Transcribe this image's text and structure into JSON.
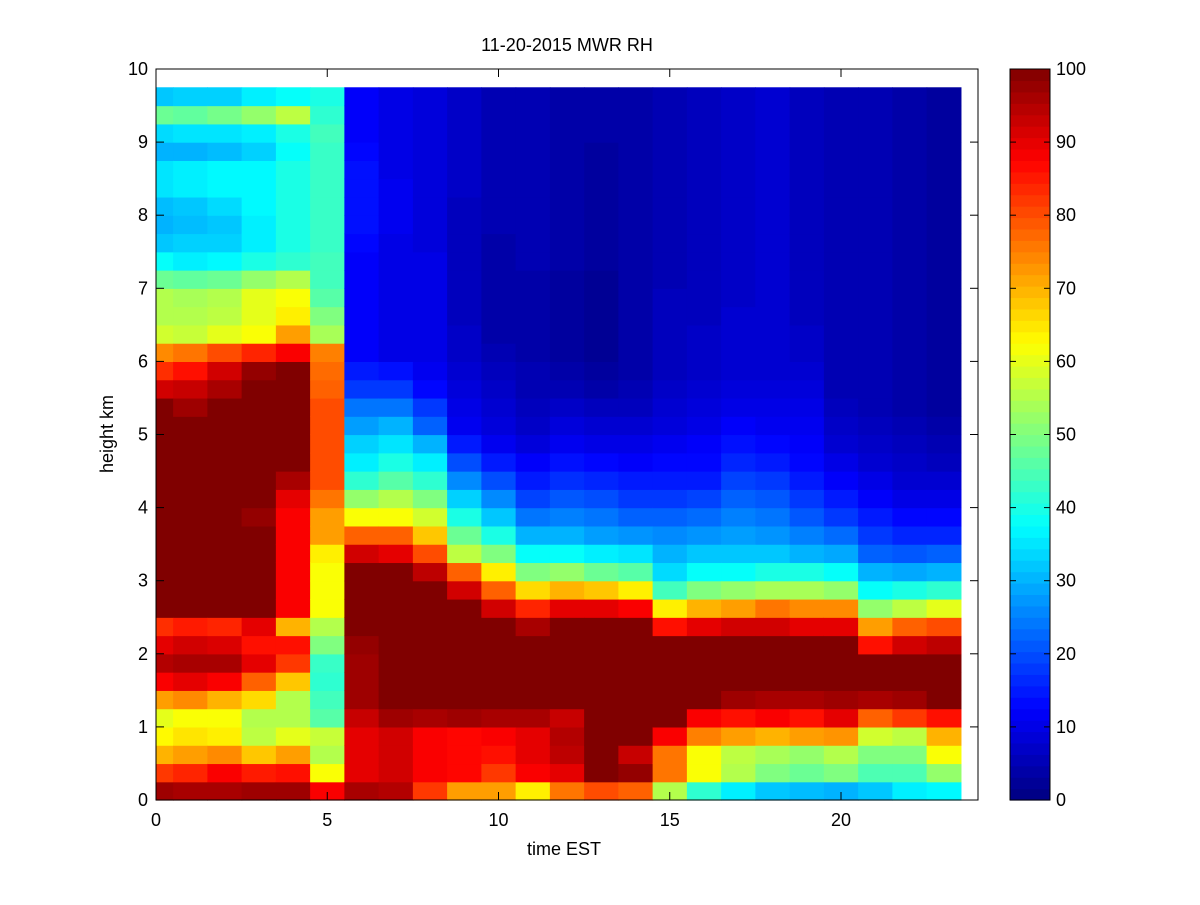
{
  "chart_data": {
    "type": "heatmap",
    "title": "11-20-2015 MWR RH",
    "xlabel": "time EST",
    "ylabel": "height km",
    "xlim": [
      0,
      24
    ],
    "ylim": [
      0,
      10
    ],
    "x_ticks": [
      "0",
      "5",
      "10",
      "15",
      "20"
    ],
    "y_ticks": [
      "0",
      "1",
      "2",
      "3",
      "4",
      "5",
      "6",
      "7",
      "8",
      "9",
      "10"
    ],
    "colormap": "jet",
    "clim": [
      0,
      100
    ],
    "colorbar_ticks": [
      "0",
      "10",
      "20",
      "30",
      "40",
      "50",
      "60",
      "70",
      "80",
      "90",
      "100"
    ],
    "colorbar_position": "right",
    "x_centers_hours": [
      0,
      1,
      2,
      3,
      4,
      5,
      6,
      7,
      8,
      9,
      10,
      11,
      12,
      13,
      14,
      15,
      16,
      17,
      18,
      19,
      20,
      21,
      22,
      23
    ],
    "x_max_edge": 23.5,
    "y_bin_km": 0.25,
    "y_max_edge_km": 9.75,
    "z_columns_bottom_to_top": [
      [
        97,
        82,
        70,
        63,
        60,
        72,
        88,
        95,
        90,
        83,
        100,
        100,
        100,
        100,
        100,
        100,
        100,
        100,
        100,
        100,
        100,
        100,
        92,
        83,
        74,
        58,
        55,
        55,
        48,
        38,
        32,
        30,
        31,
        35,
        35,
        30,
        34,
        48,
        32
      ],
      [
        96,
        84,
        72,
        65,
        62,
        74,
        90,
        96,
        92,
        85,
        100,
        100,
        100,
        100,
        100,
        100,
        100,
        100,
        100,
        100,
        100,
        97,
        93,
        86,
        76,
        57,
        55,
        54,
        47,
        36,
        33,
        31,
        32,
        36,
        36,
        30,
        35,
        47,
        33
      ],
      [
        96,
        88,
        74,
        64,
        62,
        70,
        88,
        96,
        91,
        84,
        100,
        100,
        100,
        100,
        100,
        100,
        100,
        100,
        100,
        100,
        100,
        100,
        96,
        92,
        80,
        60,
        56,
        55,
        48,
        37,
        33,
        32,
        34,
        37,
        37,
        31,
        35,
        49,
        33
      ],
      [
        97,
        85,
        68,
        56,
        55,
        66,
        78,
        90,
        86,
        90,
        100,
        100,
        100,
        100,
        100,
        98,
        100,
        100,
        100,
        100,
        100,
        100,
        100,
        98,
        84,
        62,
        60,
        60,
        52,
        40,
        36,
        36,
        37,
        37,
        37,
        33,
        36,
        52,
        36
      ],
      [
        97,
        86,
        72,
        60,
        55,
        55,
        68,
        82,
        86,
        70,
        88,
        88,
        88,
        88,
        88,
        88,
        90,
        96,
        100,
        100,
        100,
        100,
        100,
        100,
        88,
        72,
        64,
        62,
        55,
        42,
        40,
        40,
        40,
        40,
        40,
        38,
        40,
        56,
        38
      ],
      [
        88,
        62,
        55,
        57,
        46,
        44,
        42,
        43,
        50,
        55,
        62,
        62,
        62,
        64,
        72,
        72,
        76,
        80,
        80,
        80,
        80,
        80,
        78,
        77,
        75,
        54,
        50,
        46,
        44,
        44,
        43,
        43,
        43,
        43,
        43,
        43,
        44,
        42,
        40
      ],
      [
        96,
        90,
        90,
        90,
        93,
        97,
        97,
        97,
        98,
        100,
        100,
        100,
        100,
        92,
        78,
        62,
        52,
        42,
        36,
        33,
        28,
        24,
        18,
        15,
        12,
        12,
        12,
        12,
        12,
        12,
        13,
        14,
        14,
        14,
        14,
        13,
        12,
        12,
        12
      ],
      [
        95,
        92,
        92,
        92,
        97,
        100,
        100,
        100,
        100,
        100,
        100,
        100,
        100,
        90,
        78,
        62,
        55,
        46,
        40,
        35,
        30,
        24,
        18,
        14,
        10,
        10,
        10,
        10,
        10,
        10,
        10,
        11,
        11,
        11,
        10,
        10,
        10,
        10,
        10
      ],
      [
        82,
        88,
        88,
        88,
        96,
        100,
        100,
        100,
        100,
        100,
        100,
        100,
        94,
        80,
        68,
        58,
        50,
        42,
        36,
        30,
        22,
        18,
        13,
        11,
        10,
        10,
        10,
        10,
        10,
        10,
        9,
        9,
        9,
        9,
        9,
        9,
        9,
        9,
        9
      ],
      [
        72,
        87,
        87,
        87,
        97,
        100,
        100,
        100,
        100,
        100,
        100,
        92,
        78,
        56,
        48,
        40,
        33,
        26,
        20,
        15,
        11,
        10,
        9,
        8,
        7,
        7,
        6,
        6,
        6,
        6,
        6,
        6,
        6,
        7,
        7,
        7,
        7,
        7,
        7
      ],
      [
        72,
        82,
        86,
        88,
        96,
        100,
        100,
        100,
        100,
        100,
        92,
        78,
        64,
        50,
        40,
        32,
        26,
        20,
        15,
        11,
        9,
        8,
        7,
        6,
        5,
        4,
        4,
        4,
        4,
        4,
        4,
        5,
        5,
        5,
        5,
        5,
        5,
        5,
        5
      ],
      [
        64,
        88,
        90,
        90,
        96,
        100,
        100,
        100,
        100,
        96,
        84,
        66,
        50,
        38,
        30,
        24,
        19,
        15,
        12,
        9,
        7,
        6,
        5,
        5,
        4,
        4,
        4,
        4,
        4,
        5,
        5,
        5,
        5,
        5,
        5,
        5,
        5,
        5,
        5
      ],
      [
        76,
        90,
        94,
        95,
        93,
        100,
        100,
        100,
        100,
        100,
        90,
        70,
        52,
        38,
        30,
        25,
        21,
        17,
        14,
        11,
        9,
        7,
        5,
        4,
        3,
        3,
        3,
        3,
        3,
        4,
        4,
        4,
        4,
        4,
        4,
        4,
        4,
        4,
        4
      ],
      [
        80,
        100,
        100,
        100,
        100,
        100,
        100,
        100,
        100,
        100,
        90,
        68,
        48,
        36,
        28,
        24,
        20,
        16,
        13,
        10,
        8,
        6,
        4,
        3,
        2,
        2,
        2,
        2,
        2,
        3,
        3,
        3,
        3,
        3,
        3,
        3,
        4,
        4,
        4
      ],
      [
        78,
        98,
        93,
        100,
        100,
        100,
        100,
        100,
        100,
        100,
        88,
        64,
        46,
        35,
        27,
        22,
        18,
        15,
        12,
        10,
        8,
        6,
        5,
        4,
        4,
        4,
        4,
        4,
        4,
        4,
        4,
        4,
        4,
        4,
        4,
        4,
        4,
        4,
        4
      ],
      [
        55,
        76,
        76,
        88,
        100,
        100,
        100,
        100,
        100,
        86,
        64,
        44,
        34,
        30,
        26,
        22,
        18,
        15,
        13,
        11,
        9,
        8,
        7,
        6,
        6,
        6,
        6,
        6,
        5,
        5,
        5,
        5,
        5,
        5,
        5,
        5,
        5,
        5,
        5
      ],
      [
        42,
        62,
        62,
        75,
        88,
        100,
        100,
        100,
        100,
        90,
        70,
        50,
        38,
        32,
        27,
        23,
        19,
        15,
        13,
        12,
        10,
        9,
        8,
        7,
        7,
        7,
        6,
        6,
        6,
        6,
        6,
        6,
        6,
        6,
        6,
        6,
        6,
        6,
        6
      ],
      [
        36,
        55,
        56,
        72,
        86,
        97,
        100,
        100,
        100,
        92,
        72,
        52,
        38,
        32,
        28,
        25,
        22,
        19,
        16,
        14,
        12,
        10,
        9,
        8,
        8,
        8,
        8,
        7,
        7,
        7,
        7,
        7,
        7,
        7,
        7,
        7,
        7,
        7,
        7
      ],
      [
        32,
        50,
        54,
        70,
        88,
        96,
        100,
        100,
        100,
        92,
        76,
        54,
        40,
        32,
        27,
        24,
        21,
        18,
        15,
        13,
        11,
        10,
        9,
        8,
        8,
        8,
        8,
        8,
        8,
        8,
        8,
        8,
        8,
        8,
        8,
        8,
        8,
        8,
        8
      ],
      [
        31,
        48,
        52,
        72,
        86,
        96,
        100,
        100,
        100,
        90,
        74,
        54,
        40,
        30,
        25,
        21,
        18,
        15,
        13,
        12,
        11,
        10,
        9,
        8,
        7,
        7,
        6,
        6,
        6,
        6,
        6,
        6,
        6,
        6,
        6,
        6,
        6,
        6,
        6
      ],
      [
        30,
        50,
        55,
        73,
        90,
        97,
        100,
        100,
        100,
        90,
        74,
        52,
        38,
        29,
        23,
        18,
        15,
        12,
        10,
        8,
        7,
        6,
        5,
        5,
        5,
        5,
        5,
        5,
        5,
        5,
        5,
        5,
        5,
        5,
        5,
        5,
        5,
        5,
        5
      ],
      [
        32,
        45,
        50,
        58,
        78,
        96,
        100,
        100,
        86,
        72,
        52,
        38,
        30,
        22,
        18,
        15,
        12,
        10,
        8,
        7,
        6,
        5,
        5,
        5,
        5,
        5,
        5,
        5,
        5,
        5,
        5,
        5,
        5,
        5,
        5,
        5,
        5,
        5,
        5
      ],
      [
        36,
        45,
        50,
        56,
        82,
        97,
        100,
        100,
        92,
        78,
        56,
        40,
        29,
        21,
        16,
        13,
        10,
        8,
        7,
        6,
        5,
        4,
        4,
        4,
        4,
        4,
        4,
        4,
        4,
        4,
        4,
        4,
        4,
        4,
        4,
        4,
        4,
        4,
        4
      ],
      [
        37,
        52,
        62,
        70,
        86,
        100,
        100,
        100,
        94,
        80,
        60,
        42,
        30,
        22,
        16,
        13,
        10,
        8,
        6,
        5,
        4,
        3,
        3,
        3,
        3,
        3,
        3,
        3,
        3,
        3,
        3,
        3,
        3,
        3,
        3,
        3,
        3,
        3,
        3
      ]
    ]
  }
}
